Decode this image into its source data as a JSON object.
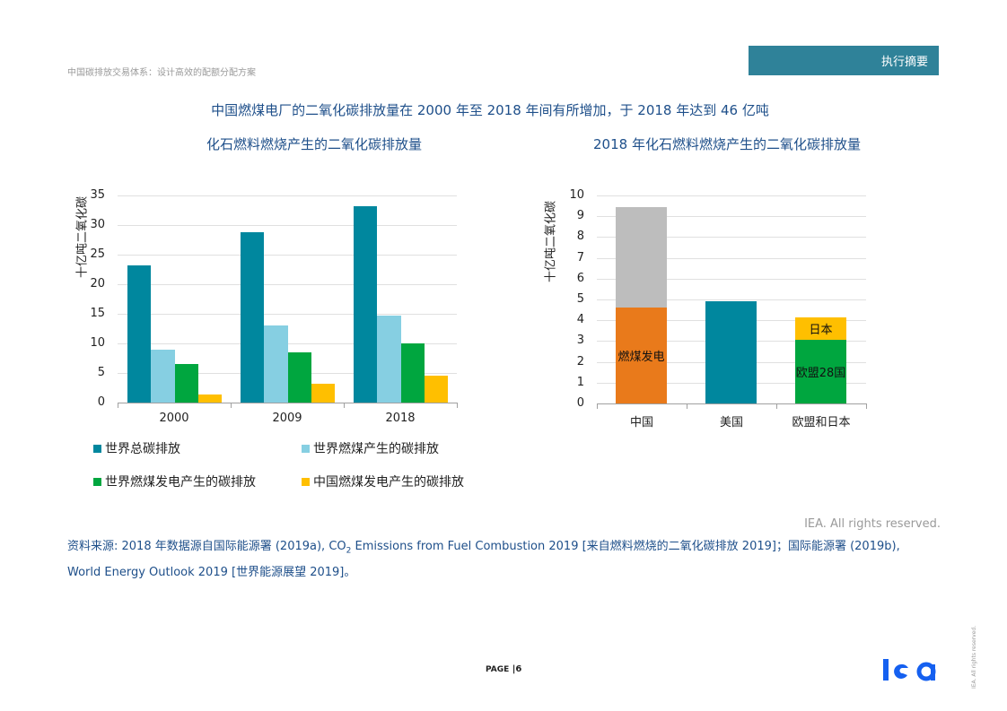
{
  "header": {
    "doc_title": "中国碳排放交易体系：设计高效的配额分配方案",
    "section_tab": "执行摘要"
  },
  "figure": {
    "main_title": "中国燃煤电厂的二氧化碳排放量在 2000 年至 2018 年间有所增加，于 2018 年达到 46 亿吨"
  },
  "chart_data": [
    {
      "type": "bar",
      "title": "化石燃料燃烧产生的二氧化碳排放量",
      "xlabel": "",
      "ylabel": "十亿吨二氧化碳",
      "ylim": [
        0,
        35
      ],
      "yticks": [
        "0",
        "5",
        "10",
        "15",
        "20",
        "25",
        "30",
        "35"
      ],
      "grid": true,
      "legend_position": "bottom",
      "categories": [
        "2000",
        "2009",
        "2018"
      ],
      "series": [
        {
          "name": "世界总碳排放",
          "color": "#00879e",
          "values": [
            23.2,
            28.8,
            33.2
          ]
        },
        {
          "name": "世界燃煤产生的碳排放",
          "color": "#86cfe2",
          "values": [
            9.0,
            13.0,
            14.7
          ]
        },
        {
          "name": "世界燃煤发电产生的碳排放",
          "color": "#00a63f",
          "values": [
            6.5,
            8.5,
            10.0
          ]
        },
        {
          "name": "中国燃煤发电产生的碳排放",
          "color": "#ffbf00",
          "values": [
            1.4,
            3.2,
            4.6
          ]
        }
      ]
    },
    {
      "type": "bar",
      "stacked": true,
      "title": "2018 年化石燃料燃烧产生的二氧化碳排放量",
      "xlabel": "",
      "ylabel": "十亿吨二氧化碳",
      "ylim": [
        0,
        10
      ],
      "yticks": [
        "0",
        "1",
        "2",
        "3",
        "4",
        "5",
        "6",
        "7",
        "8",
        "9",
        "10"
      ],
      "grid": true,
      "categories": [
        "中国",
        "美国",
        "欧盟和日本"
      ],
      "stacks": [
        {
          "category": "中国",
          "segments": [
            {
              "label": "燃煤发电",
              "value": 4.6,
              "color": "#e97a1b"
            },
            {
              "label": "",
              "value": 4.85,
              "color": "#bdbdbd"
            }
          ]
        },
        {
          "category": "美国",
          "segments": [
            {
              "label": "",
              "value": 4.9,
              "color": "#00879e"
            }
          ]
        },
        {
          "category": "欧盟和日本",
          "segments": [
            {
              "label": "欧盟28国",
              "value": 3.05,
              "color": "#00a63f"
            },
            {
              "label": "日本",
              "value": 1.1,
              "color": "#ffbf00"
            }
          ]
        }
      ]
    }
  ],
  "footer": {
    "rights": "IEA. All rights reserved.",
    "source_prefix": "资料来源: 2018 年数据源自国际能源署 (2019a), CO",
    "source_sub": "2",
    "source_suffix": " Emissions from Fuel Combustion 2019 [来自燃料燃烧的二氧化碳排放 2019]；国际能源署 (2019b), World Energy Outlook 2019 [世界能源展望 2019]。",
    "page_label": "Page",
    "page_sep": "|",
    "page_number": "6",
    "logo_text": "iea",
    "vertical_rights": "IEA. All rights reserved."
  }
}
